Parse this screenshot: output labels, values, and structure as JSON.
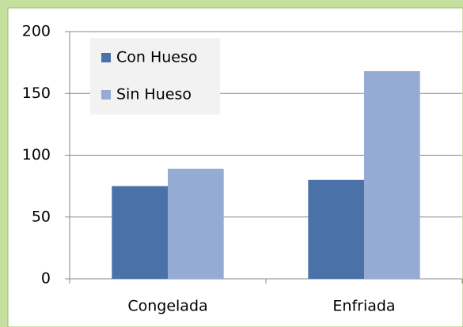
{
  "chart_data": {
    "type": "bar",
    "categories": [
      "Congelada",
      "Enfriada"
    ],
    "series": [
      {
        "name": "Con Hueso",
        "color": "#4a72a8",
        "values": [
          75,
          80
        ]
      },
      {
        "name": "Sin Hueso",
        "color": "#95abd4",
        "values": [
          89,
          168
        ]
      }
    ],
    "ylim": [
      0,
      200
    ],
    "yticks": [
      0,
      50,
      100,
      150,
      200
    ],
    "grid": true,
    "legend": "top-left"
  }
}
